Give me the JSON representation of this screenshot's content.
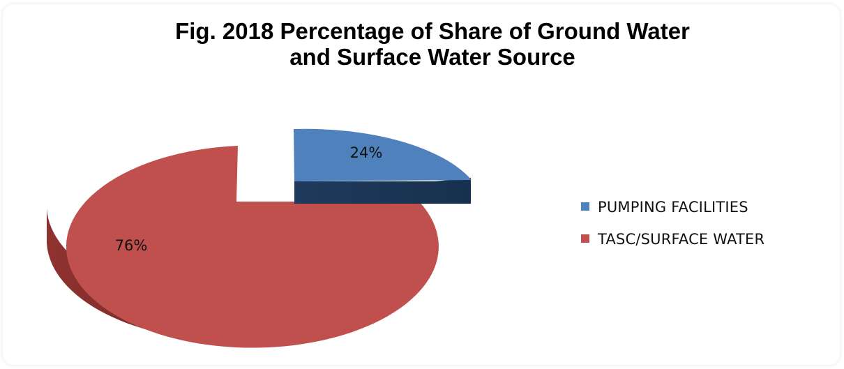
{
  "chart_data": {
    "type": "pie",
    "title_lines": [
      "Fig. 2018 Percentage of Share of Ground Water",
      "and Surface Water Source"
    ],
    "categories": [
      "PUMPING FACILITIES",
      "TASC/SURFACE WATER"
    ],
    "values": [
      24,
      76
    ],
    "data_labels": [
      "24%",
      "76%"
    ],
    "colors": [
      "#4f81bd",
      "#c0504d"
    ],
    "legend_position": "right",
    "style": "3d-exploded"
  }
}
